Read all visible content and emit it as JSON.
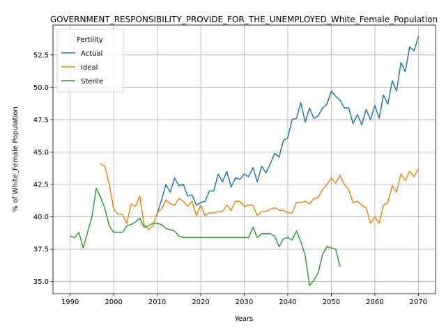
{
  "chart_data": {
    "type": "line",
    "title": "GOVERNMENT_RESPONSIBILITY_PROVIDE_FOR_THE_UNEMPLOYED_White_Female_Population",
    "xlabel": "Years",
    "ylabel": "% of White_Female Population",
    "xlim": [
      1986.05,
      2073.95
    ],
    "ylim": [
      34.07,
      54.8
    ],
    "xticks": [
      1990,
      2000,
      2010,
      2020,
      2030,
      2040,
      2050,
      2060,
      2070
    ],
    "yticks": [
      35.0,
      37.5,
      40.0,
      42.5,
      45.0,
      47.5,
      50.0,
      52.5
    ],
    "xtick_labels": [
      "1990",
      "2000",
      "2010",
      "2020",
      "2030",
      "2040",
      "2050",
      "2060",
      "2070"
    ],
    "ytick_labels": [
      "35.0",
      "37.5",
      "40.0",
      "42.5",
      "45.0",
      "47.5",
      "50.0",
      "52.5"
    ],
    "grid": true,
    "legend": {
      "title": "Fertility",
      "placement": "upper left"
    },
    "series": [
      {
        "name": "Actual",
        "color": "#1f77b4",
        "x": [
          2010,
          2011,
          2012,
          2013,
          2014,
          2015,
          2016,
          2017,
          2018,
          2019,
          2020,
          2021,
          2022,
          2023,
          2024,
          2025,
          2026,
          2027,
          2028,
          2029,
          2030,
          2031,
          2032,
          2033,
          2034,
          2035,
          2036,
          2037,
          2038,
          2039,
          2040,
          2041,
          2042,
          2043,
          2044,
          2045,
          2046,
          2047,
          2048,
          2049,
          2050,
          2051,
          2052,
          2053,
          2054,
          2055,
          2056,
          2057,
          2058,
          2059,
          2060,
          2061,
          2062,
          2063,
          2064,
          2065,
          2066,
          2067,
          2068,
          2069,
          2070
        ],
        "y": [
          40.2,
          41.3,
          42.5,
          41.9,
          43.0,
          42.4,
          42.5,
          41.6,
          41.7,
          40.9,
          41.1,
          41.2,
          42.0,
          42.0,
          43.3,
          42.7,
          43.5,
          42.3,
          43.0,
          42.9,
          43.3,
          43.1,
          43.8,
          42.7,
          43.9,
          43.4,
          44.1,
          44.9,
          44.6,
          45.9,
          46.1,
          47.5,
          47.6,
          48.8,
          47.3,
          48.4,
          47.6,
          47.8,
          48.4,
          48.7,
          49.7,
          49.3,
          49.0,
          48.4,
          48.4,
          47.2,
          47.9,
          47.1,
          48.3,
          47.5,
          48.6,
          47.6,
          49.4,
          48.7,
          50.5,
          49.7,
          51.9,
          51.2,
          53.1,
          52.8,
          53.9
        ]
      },
      {
        "name": "Ideal",
        "color": "#ff7f0e",
        "x": [
          1997,
          1998,
          1999,
          2000,
          2001,
          2002,
          2003,
          2004,
          2005,
          2006,
          2007,
          2008,
          2009,
          2010,
          2011,
          2012,
          2013,
          2014,
          2015,
          2016,
          2017,
          2018,
          2019,
          2020,
          2021,
          2022,
          2023,
          2024,
          2025,
          2026,
          2027,
          2028,
          2029,
          2030,
          2031,
          2032,
          2033,
          2034,
          2035,
          2036,
          2037,
          2038,
          2039,
          2040,
          2041,
          2042,
          2043,
          2044,
          2045,
          2046,
          2047,
          2048,
          2049,
          2050,
          2051,
          2052,
          2053,
          2054,
          2055,
          2056,
          2057,
          2058,
          2059,
          2060,
          2061,
          2062,
          2063,
          2064,
          2065,
          2066,
          2067,
          2068,
          2069,
          2070
        ],
        "y": [
          44.1,
          43.9,
          42.5,
          40.6,
          40.2,
          40.2,
          39.5,
          41.0,
          40.8,
          41.6,
          39.4,
          39.0,
          39.3,
          40.3,
          40.6,
          41.3,
          41.0,
          40.9,
          41.4,
          41.2,
          40.8,
          41.2,
          40.1,
          40.9,
          40.1,
          40.3,
          40.3,
          40.4,
          40.4,
          40.9,
          40.5,
          41.2,
          41.2,
          40.8,
          40.9,
          40.9,
          40.1,
          40.4,
          40.4,
          40.6,
          40.7,
          40.5,
          40.5,
          40.3,
          40.3,
          41.1,
          41.1,
          41.2,
          41.0,
          41.4,
          41.5,
          42.1,
          42.5,
          43.0,
          42.6,
          43.2,
          42.5,
          42.1,
          41.1,
          41.2,
          40.9,
          40.7,
          39.5,
          40.0,
          39.5,
          40.9,
          41.1,
          42.4,
          41.9,
          43.3,
          42.8,
          43.5,
          43.1,
          43.7
        ]
      },
      {
        "name": "Sterile",
        "color": "#2ca02c",
        "x": [
          1990,
          1991,
          1992,
          1993,
          1994,
          1995,
          1996,
          1997,
          1998,
          1999,
          2000,
          2001,
          2002,
          2003,
          2004,
          2005,
          2006,
          2007,
          2008,
          2009,
          2010,
          2011,
          2012,
          2013,
          2014,
          2015,
          2016,
          2017,
          2018,
          2019,
          2020,
          2021,
          2022,
          2023,
          2024,
          2025,
          2026,
          2027,
          2028,
          2029,
          2030,
          2031,
          2032,
          2033,
          2034,
          2035,
          2036,
          2037,
          2038,
          2039,
          2040,
          2041,
          2042,
          2043,
          2044,
          2045,
          2046,
          2047,
          2048,
          2049,
          2050,
          2051,
          2052
        ],
        "y": [
          38.5,
          38.4,
          38.8,
          37.6,
          38.8,
          40.0,
          42.2,
          41.5,
          40.6,
          39.3,
          38.8,
          38.8,
          38.8,
          39.3,
          39.4,
          39.6,
          39.9,
          39.2,
          39.3,
          39.5,
          39.5,
          39.4,
          39.1,
          39.0,
          38.9,
          38.5,
          38.4,
          38.4,
          38.4,
          38.4,
          38.4,
          38.4,
          38.4,
          38.4,
          38.4,
          38.4,
          38.4,
          38.4,
          38.4,
          38.4,
          38.4,
          38.4,
          39.2,
          38.4,
          38.7,
          38.7,
          38.7,
          38.5,
          37.7,
          38.3,
          38.4,
          38.2,
          38.9,
          38.1,
          37.0,
          34.7,
          35.1,
          35.7,
          37.1,
          37.7,
          37.6,
          37.5,
          36.2
        ]
      }
    ]
  }
}
